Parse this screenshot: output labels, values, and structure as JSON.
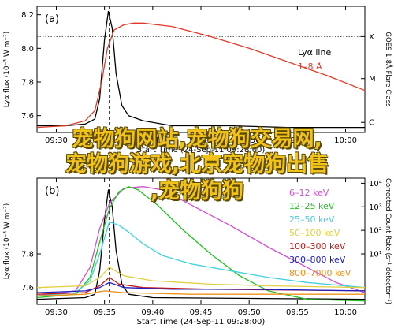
{
  "overlay": {
    "line1": "宠物狗网站,宠物狗交易网,",
    "line2": "宠物狗游戏,北京宠物狗出售",
    "line3": ",宠物狗狗"
  },
  "colors": {
    "black": "#000000",
    "red": "#e03a2a",
    "magenta": "#d050d0",
    "green": "#20c020",
    "cyan": "#40d0e0",
    "yellow": "#e0d040",
    "darkred": "#c01818",
    "blue": "#2020c0",
    "orange": "#f09018",
    "grid": "#b0b0b0"
  },
  "chart_data": [
    {
      "panel_label": "(a)",
      "type": "line",
      "xlabel": "Start Time (24-Sep-11 09:28:00)",
      "x_ticks": [
        "09:30",
        "09:35",
        "09:40",
        "09:45",
        "09:50",
        "09:55",
        "10:00"
      ],
      "x_tick_minutes": [
        2,
        7,
        12,
        17,
        22,
        27,
        32
      ],
      "xlim_minutes": [
        0,
        34
      ],
      "ylabel": "Lyα flux (10⁻³ W m⁻²)",
      "y_ticks": [
        "7.6",
        "7.8",
        "8.0",
        "8.2"
      ],
      "ylim": [
        7.5,
        8.25
      ],
      "right_label": "GOES 1-8Å Flare Class",
      "right_ticks": [
        "X",
        "M",
        "C"
      ],
      "right_tick_values": [
        8.07,
        7.82,
        7.56
      ],
      "flare_peak_minute": 7.5,
      "threshold_line": 8.07,
      "legend": [
        "Lyα line",
        "1–8 Å"
      ],
      "series": [
        {
          "name": "Lyα line",
          "color_key": "black",
          "points": [
            [
              0,
              7.54
            ],
            [
              3,
              7.54
            ],
            [
              5,
              7.55
            ],
            [
              6,
              7.58
            ],
            [
              6.5,
              7.7
            ],
            [
              7,
              8.05
            ],
            [
              7.4,
              8.22
            ],
            [
              7.8,
              8.12
            ],
            [
              8.2,
              7.85
            ],
            [
              8.8,
              7.66
            ],
            [
              9.5,
              7.6
            ],
            [
              11,
              7.57
            ],
            [
              14,
              7.54
            ],
            [
              20,
              7.54
            ],
            [
              26,
              7.53
            ],
            [
              34,
              7.53
            ]
          ]
        },
        {
          "name": "1–8 Å",
          "color_key": "red",
          "points": [
            [
              0,
              7.53
            ],
            [
              3,
              7.54
            ],
            [
              5,
              7.57
            ],
            [
              6,
              7.63
            ],
            [
              6.7,
              7.8
            ],
            [
              7.3,
              8.0
            ],
            [
              8,
              8.11
            ],
            [
              9,
              8.14
            ],
            [
              10,
              8.15
            ],
            [
              11,
              8.15
            ],
            [
              14,
              8.13
            ],
            [
              18,
              8.07
            ],
            [
              22,
              8.0
            ],
            [
              26,
              7.92
            ],
            [
              30,
              7.84
            ],
            [
              34,
              7.75
            ]
          ]
        }
      ]
    },
    {
      "panel_label": "(b)",
      "type": "line",
      "xlabel": "Start Time (24-Sep-11 09:28:00)",
      "x_ticks": [
        "09:30",
        "09:35",
        "09:40",
        "09:45",
        "09:50",
        "09:55",
        "10:00"
      ],
      "x_tick_minutes": [
        2,
        7,
        12,
        17,
        22,
        27,
        32
      ],
      "xlim_minutes": [
        0,
        34
      ],
      "ylabel": "Lyα flux (10⁻³ W m⁻²)",
      "y_ticks": [
        "7.6",
        "7.8"
      ],
      "ylim": [
        7.5,
        8.25
      ],
      "right_label": "Corrected Count Rate (s⁻¹ detector⁻¹)",
      "right_ticks": [
        "10⁴",
        "10³",
        "10²",
        "10¹"
      ],
      "right_tick_values": [
        8.22,
        8.08,
        7.94,
        7.8
      ],
      "flare_peak_minute": 7.5,
      "legend": [
        "6–12 keV",
        "12–25 keV",
        "25–50 keV",
        "50–100 keV",
        "100–300 keV",
        "300–800 keV",
        "800–7000 keV"
      ],
      "series": [
        {
          "name": "Lyα line",
          "color_key": "black",
          "points": [
            [
              0,
              7.53
            ],
            [
              5,
              7.54
            ],
            [
              6,
              7.56
            ],
            [
              6.5,
              7.7
            ],
            [
              7,
              8.0
            ],
            [
              7.4,
              8.18
            ],
            [
              7.8,
              8.08
            ],
            [
              8.2,
              7.82
            ],
            [
              8.8,
              7.62
            ],
            [
              9.5,
              7.56
            ],
            [
              12,
              7.54
            ],
            [
              34,
              7.53
            ]
          ]
        },
        {
          "name": "6–12 keV",
          "color_key": "magenta",
          "points": [
            [
              0,
              7.55
            ],
            [
              4,
              7.58
            ],
            [
              5.5,
              7.72
            ],
            [
              6.5,
              7.95
            ],
            [
              7.5,
              8.1
            ],
            [
              9,
              8.19
            ],
            [
              11,
              8.2
            ],
            [
              13,
              8.18
            ],
            [
              16,
              8.09
            ],
            [
              20,
              7.97
            ],
            [
              24,
              7.84
            ],
            [
              28,
              7.72
            ],
            [
              31,
              7.63
            ],
            [
              34,
              7.57
            ]
          ]
        },
        {
          "name": "12–25 keV",
          "color_key": "green",
          "points": [
            [
              0,
              7.54
            ],
            [
              4,
              7.56
            ],
            [
              5.5,
              7.66
            ],
            [
              6.5,
              7.87
            ],
            [
              7.5,
              8.07
            ],
            [
              8.5,
              8.17
            ],
            [
              9.5,
              8.2
            ],
            [
              10.5,
              8.18
            ],
            [
              12.5,
              8.09
            ],
            [
              15,
              7.95
            ],
            [
              18,
              7.8
            ],
            [
              21,
              7.67
            ],
            [
              24,
              7.58
            ],
            [
              28,
              7.53
            ],
            [
              34,
              7.52
            ]
          ]
        },
        {
          "name": "25–50 keV",
          "color_key": "cyan",
          "points": [
            [
              0,
              7.55
            ],
            [
              4,
              7.57
            ],
            [
              5.5,
              7.64
            ],
            [
              6.5,
              7.8
            ],
            [
              7.5,
              7.99
            ],
            [
              8.5,
              7.97
            ],
            [
              9.5,
              7.93
            ],
            [
              11,
              7.86
            ],
            [
              13,
              7.79
            ],
            [
              16,
              7.74
            ],
            [
              20,
              7.7
            ],
            [
              24,
              7.66
            ],
            [
              28,
              7.63
            ],
            [
              34,
              7.6
            ]
          ]
        },
        {
          "name": "50–100 keV",
          "color_key": "yellow",
          "points": [
            [
              0,
              7.6
            ],
            [
              5,
              7.61
            ],
            [
              6.5,
              7.66
            ],
            [
              7.5,
              7.72
            ],
            [
              9,
              7.67
            ],
            [
              12,
              7.64
            ],
            [
              18,
              7.62
            ],
            [
              24,
              7.61
            ],
            [
              34,
              7.6
            ]
          ]
        },
        {
          "name": "100–300 keV",
          "color_key": "darkred",
          "points": [
            [
              0,
              7.56
            ],
            [
              5,
              7.57
            ],
            [
              6.5,
              7.61
            ],
            [
              7.5,
              7.66
            ],
            [
              8.5,
              7.62
            ],
            [
              11,
              7.6
            ],
            [
              18,
              7.59
            ],
            [
              34,
              7.58
            ]
          ]
        },
        {
          "name": "300–800 keV",
          "color_key": "blue",
          "points": [
            [
              0,
              7.57
            ],
            [
              5,
              7.58
            ],
            [
              6.5,
              7.6
            ],
            [
              7.5,
              7.63
            ],
            [
              9,
              7.6
            ],
            [
              14,
              7.59
            ],
            [
              22,
              7.59
            ],
            [
              34,
              7.58
            ]
          ]
        },
        {
          "name": "800–7000 keV",
          "color_key": "orange",
          "points": [
            [
              0,
              7.55
            ],
            [
              5,
              7.56
            ],
            [
              7,
              7.58
            ],
            [
              9,
              7.57
            ],
            [
              16,
              7.56
            ],
            [
              34,
              7.56
            ]
          ]
        }
      ]
    }
  ]
}
